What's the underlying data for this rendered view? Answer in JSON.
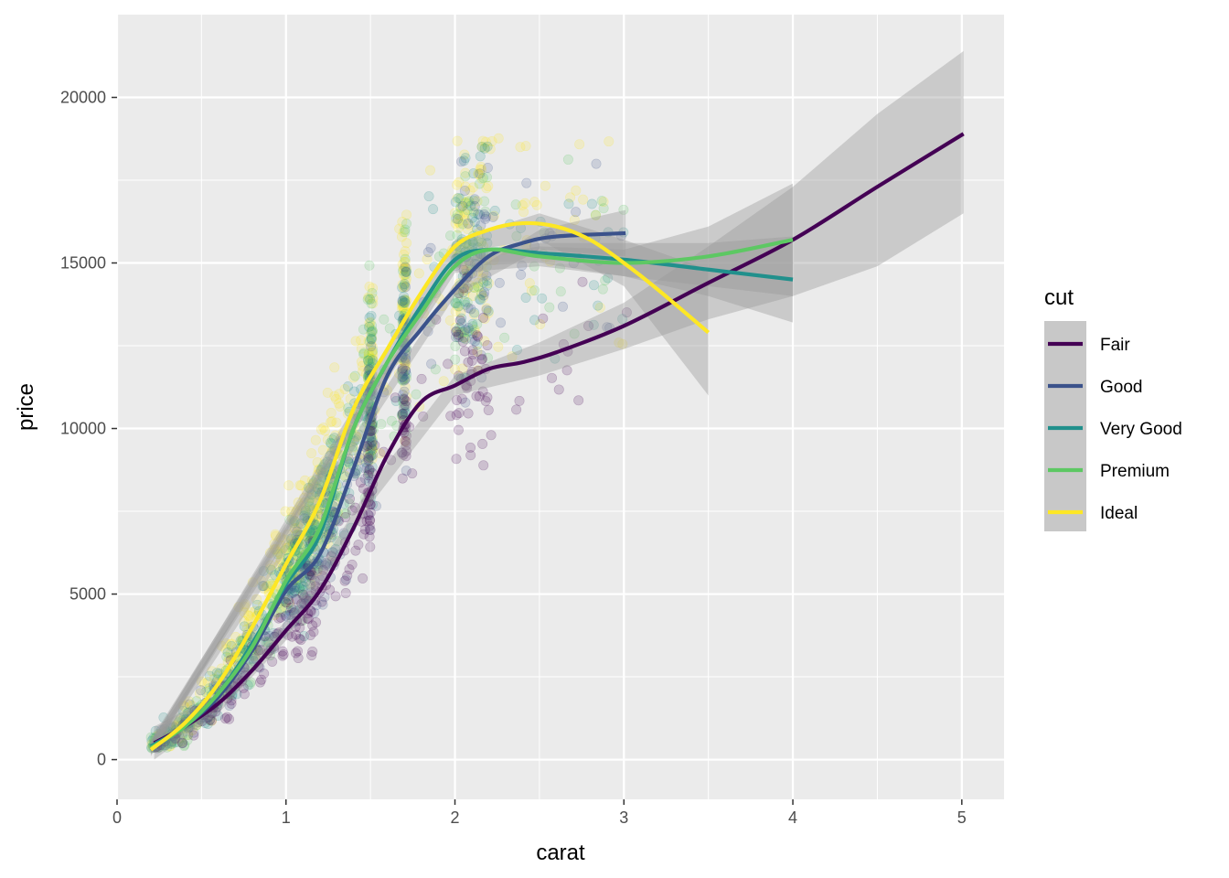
{
  "chart_data": {
    "type": "scatter",
    "xlabel": "carat",
    "ylabel": "price",
    "xlim": [
      0,
      5.25
    ],
    "ylim": [
      -1200,
      22500
    ],
    "x_ticks": [
      0,
      1,
      2,
      3,
      4,
      5
    ],
    "y_ticks": [
      0,
      5000,
      10000,
      15000,
      20000
    ],
    "x_tick_labels": [
      "0",
      "1",
      "2",
      "3",
      "4",
      "5"
    ],
    "y_tick_labels": [
      "0",
      "5000",
      "10000",
      "15000",
      "20000"
    ],
    "grid": true,
    "legend": {
      "title": "cut",
      "position": "right"
    },
    "series": [
      {
        "name": "Fair",
        "color": "#440154",
        "smooth": [
          [
            0.22,
            500
          ],
          [
            0.4,
            1000
          ],
          [
            0.6,
            1700
          ],
          [
            0.8,
            2700
          ],
          [
            1.0,
            3900
          ],
          [
            1.2,
            5100
          ],
          [
            1.4,
            7000
          ],
          [
            1.6,
            9200
          ],
          [
            1.8,
            10800
          ],
          [
            2.0,
            11300
          ],
          [
            2.2,
            11800
          ],
          [
            2.4,
            12000
          ],
          [
            2.6,
            12300
          ],
          [
            3.0,
            13100
          ],
          [
            3.5,
            14400
          ],
          [
            4.0,
            15700
          ],
          [
            4.5,
            17300
          ],
          [
            5.01,
            18900
          ]
        ],
        "band": [
          [
            0.22,
            0,
            1000
          ],
          [
            0.6,
            1400,
            2000
          ],
          [
            1.0,
            3600,
            4200
          ],
          [
            1.5,
            7700,
            8300
          ],
          [
            2.0,
            11000,
            11600
          ],
          [
            2.5,
            11600,
            12600
          ],
          [
            3.0,
            12400,
            13800
          ],
          [
            3.5,
            13300,
            15500
          ],
          [
            4.0,
            14000,
            17300
          ],
          [
            4.5,
            14900,
            19500
          ],
          [
            5.01,
            16500,
            21400
          ]
        ]
      },
      {
        "name": "Good",
        "color": "#3b528b",
        "smooth": [
          [
            0.23,
            500
          ],
          [
            0.4,
            1000
          ],
          [
            0.6,
            1900
          ],
          [
            0.8,
            3300
          ],
          [
            1.0,
            5100
          ],
          [
            1.2,
            6200
          ],
          [
            1.4,
            8800
          ],
          [
            1.6,
            11600
          ],
          [
            1.8,
            13000
          ],
          [
            2.0,
            14200
          ],
          [
            2.2,
            15200
          ],
          [
            2.4,
            15600
          ],
          [
            2.6,
            15800
          ],
          [
            3.01,
            15900
          ]
        ],
        "band": [
          [
            0.23,
            300,
            700
          ],
          [
            2.0,
            14000,
            14400
          ],
          [
            2.5,
            15400,
            16000
          ],
          [
            3.01,
            15200,
            16600
          ]
        ]
      },
      {
        "name": "Very Good",
        "color": "#21908c",
        "smooth": [
          [
            0.2,
            400
          ],
          [
            0.4,
            1000
          ],
          [
            0.6,
            2000
          ],
          [
            0.8,
            3500
          ],
          [
            1.0,
            5300
          ],
          [
            1.2,
            6800
          ],
          [
            1.4,
            10000
          ],
          [
            1.6,
            12000
          ],
          [
            1.8,
            13700
          ],
          [
            2.0,
            15100
          ],
          [
            2.2,
            15400
          ],
          [
            2.5,
            15300
          ],
          [
            3.0,
            15100
          ],
          [
            3.5,
            14800
          ],
          [
            4.0,
            14500
          ]
        ],
        "band": [
          [
            0.2,
            200,
            600
          ],
          [
            2.0,
            14900,
            15300
          ],
          [
            2.5,
            15000,
            15600
          ],
          [
            3.0,
            14600,
            15600
          ],
          [
            3.5,
            14000,
            15600
          ],
          [
            4.0,
            13200,
            15800
          ]
        ]
      },
      {
        "name": "Premium",
        "color": "#5dc863",
        "smooth": [
          [
            0.2,
            350
          ],
          [
            0.4,
            1000
          ],
          [
            0.6,
            2000
          ],
          [
            0.8,
            3400
          ],
          [
            1.0,
            5400
          ],
          [
            1.2,
            7000
          ],
          [
            1.4,
            10000
          ],
          [
            1.6,
            12000
          ],
          [
            1.8,
            13500
          ],
          [
            2.0,
            14900
          ],
          [
            2.2,
            15400
          ],
          [
            2.5,
            15200
          ],
          [
            3.0,
            15000
          ],
          [
            3.5,
            15200
          ],
          [
            4.0,
            15700
          ]
        ],
        "band": [
          [
            0.2,
            150,
            550
          ],
          [
            2.0,
            14700,
            15100
          ],
          [
            2.5,
            14900,
            15500
          ],
          [
            3.0,
            14600,
            15400
          ],
          [
            3.5,
            14300,
            16100
          ],
          [
            4.0,
            14000,
            17400
          ]
        ]
      },
      {
        "name": "Ideal",
        "color": "#fde725",
        "smooth": [
          [
            0.2,
            300
          ],
          [
            0.4,
            1100
          ],
          [
            0.6,
            2300
          ],
          [
            0.8,
            4000
          ],
          [
            1.0,
            5900
          ],
          [
            1.2,
            7800
          ],
          [
            1.4,
            10600
          ],
          [
            1.6,
            12400
          ],
          [
            1.8,
            14100
          ],
          [
            2.0,
            15500
          ],
          [
            2.2,
            16000
          ],
          [
            2.4,
            16200
          ],
          [
            2.6,
            16100
          ],
          [
            2.8,
            15700
          ],
          [
            3.0,
            15000
          ],
          [
            3.2,
            14200
          ],
          [
            3.5,
            12900
          ]
        ],
        "band": [
          [
            0.2,
            100,
            500
          ],
          [
            2.0,
            15300,
            15700
          ],
          [
            2.5,
            15700,
            16500
          ],
          [
            3.0,
            14300,
            15700
          ],
          [
            3.5,
            11000,
            14800
          ]
        ]
      }
    ]
  }
}
